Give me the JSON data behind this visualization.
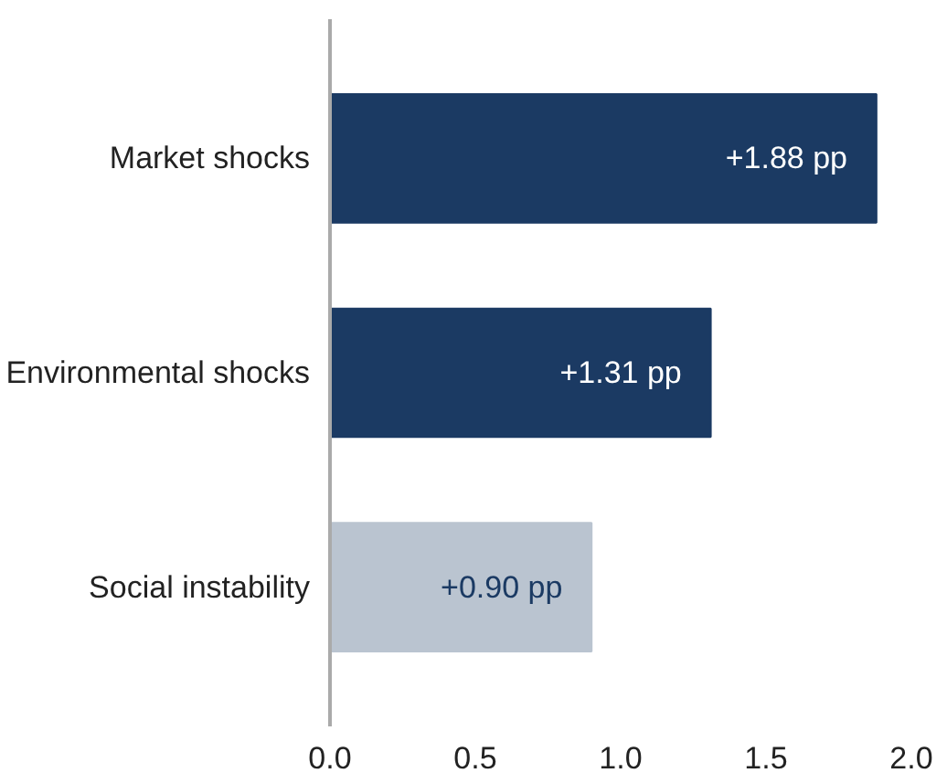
{
  "chart_data": {
    "type": "bar",
    "orientation": "horizontal",
    "categories": [
      "Market shocks",
      "Environmental shocks",
      "Social instability"
    ],
    "values": [
      1.88,
      1.31,
      0.9
    ],
    "colors": [
      "#1b3a63",
      "#1b3a63",
      "#bac4d0"
    ],
    "value_labels": [
      "+1.88 pp",
      "+1.31 pp",
      "+0.90 pp"
    ],
    "xlim": [
      0,
      2.0
    ],
    "xticks": [
      {
        "value": 0,
        "label": "0.0"
      },
      {
        "value": 0.5,
        "label": "0.5"
      },
      {
        "value": 1.0,
        "label": "1.0"
      },
      {
        "value": 1.5,
        "label": "1.5"
      },
      {
        "value": 2.0,
        "label": "2.0"
      }
    ],
    "grid": false
  }
}
